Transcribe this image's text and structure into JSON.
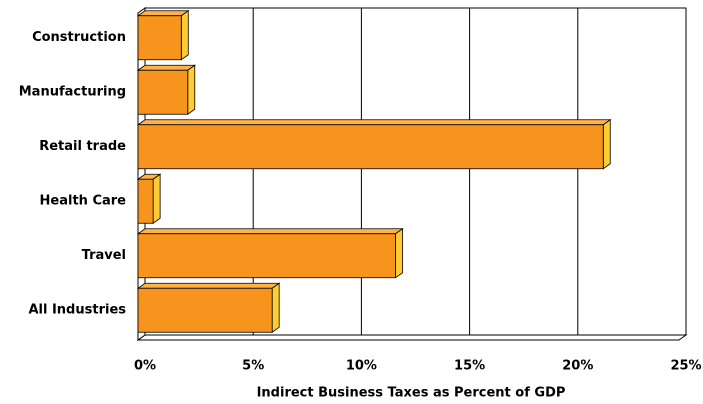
{
  "chart_data": {
    "type": "bar",
    "orientation": "horizontal",
    "x_label": "Indirect Business Taxes as Percent of GDP",
    "categories": [
      "Construction",
      "Manufacturing",
      "Retail trade",
      "Health Care",
      "Travel",
      "All Industries"
    ],
    "values": [
      2.0,
      2.3,
      21.5,
      0.7,
      11.9,
      6.2
    ],
    "color": "#f7941d",
    "xlim": [
      0,
      25
    ],
    "xticks": [
      {
        "value": 0,
        "label": "0%"
      },
      {
        "value": 5,
        "label": "5%"
      },
      {
        "value": 10,
        "label": "10%"
      },
      {
        "value": 15,
        "label": "15%"
      },
      {
        "value": 20,
        "label": "20%"
      },
      {
        "value": 25,
        "label": "25%"
      }
    ],
    "grid": true
  }
}
